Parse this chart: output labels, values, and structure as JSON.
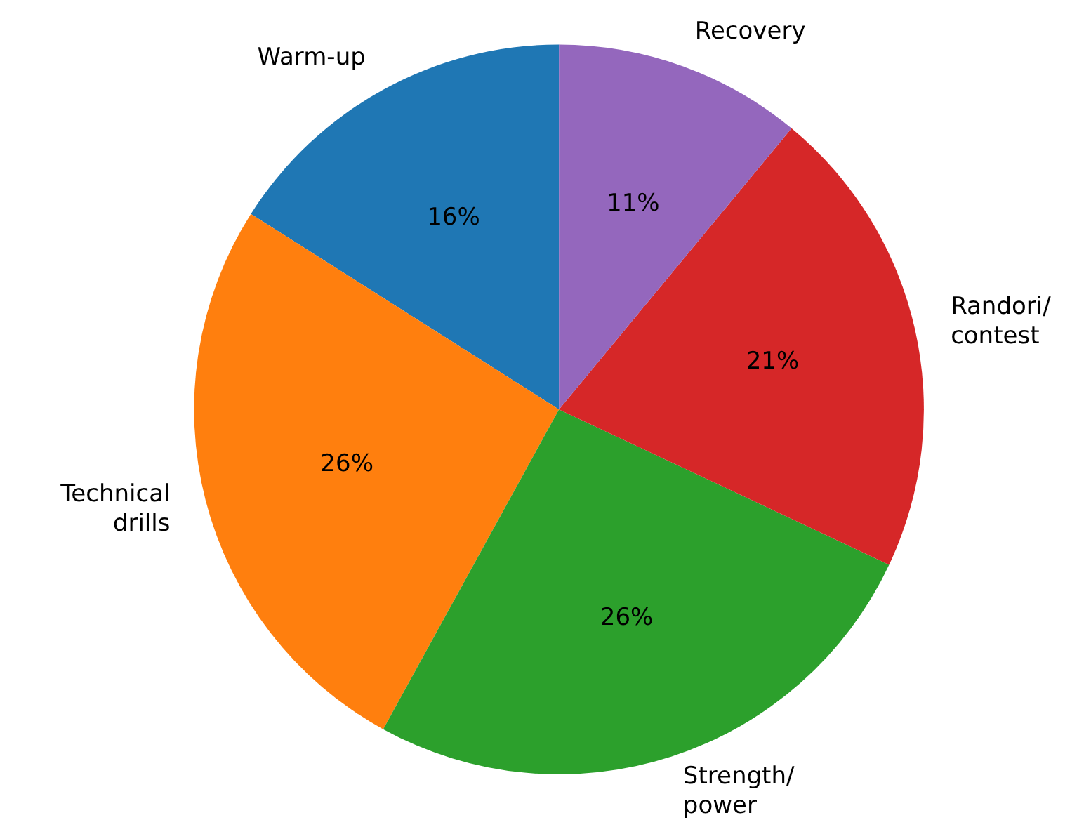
{
  "chart_data": {
    "type": "pie",
    "categories": [
      "Warm-up",
      "Technical\ndrills",
      "Strength/\npower",
      "Randori/\ncontest",
      "Recovery"
    ],
    "values": [
      16,
      26,
      26,
      21,
      11
    ],
    "colors": [
      "#1f77b4",
      "#ff7f0e",
      "#2ca02c",
      "#d62728",
      "#9467bd"
    ],
    "value_labels": [
      "16%",
      "26%",
      "26%",
      "21%",
      "11%"
    ]
  }
}
